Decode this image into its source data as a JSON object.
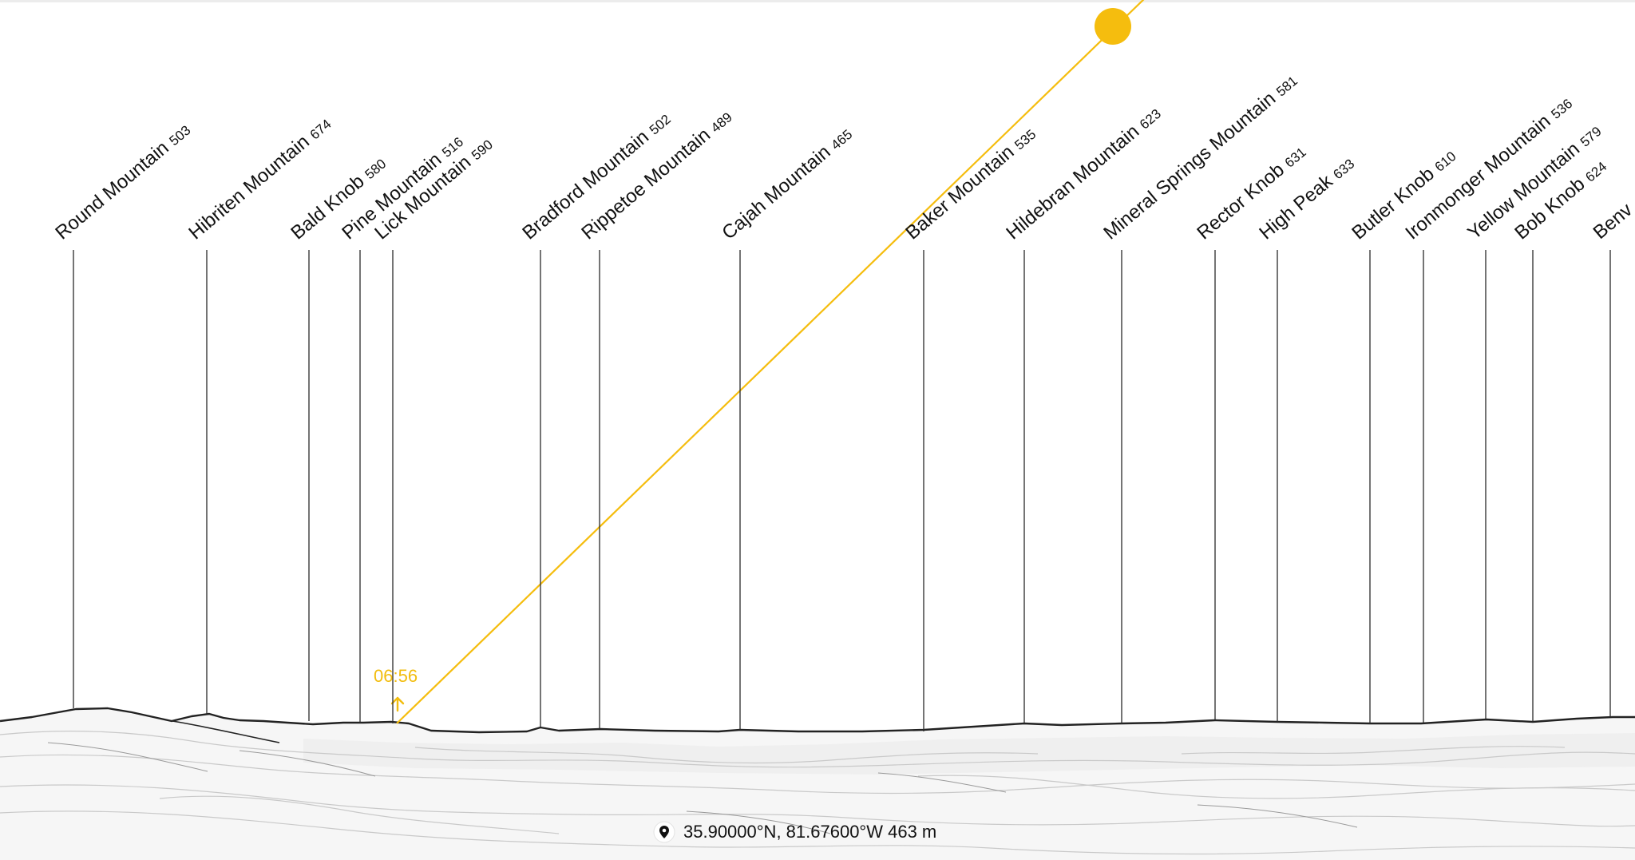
{
  "sun": {
    "time": "06:56",
    "color": "#f5bd0e"
  },
  "location": {
    "text": "35.90000°N, 81.67600°W 463 m",
    "icon": "location-pin-icon"
  },
  "peaks": [
    {
      "name": "Round Mountain",
      "elevation": "503"
    },
    {
      "name": "Hibriten Mountain",
      "elevation": "674"
    },
    {
      "name": "Bald Knob",
      "elevation": "580"
    },
    {
      "name": "Pine Mountain",
      "elevation": "516"
    },
    {
      "name": "Lick Mountain",
      "elevation": "590"
    },
    {
      "name": "Bradford Mountain",
      "elevation": "502"
    },
    {
      "name": "Rippetoe Mountain",
      "elevation": "489"
    },
    {
      "name": "Cajah Mountain",
      "elevation": "465"
    },
    {
      "name": "Baker Mountain",
      "elevation": "535"
    },
    {
      "name": "Hildebran Mountain",
      "elevation": "623"
    },
    {
      "name": "Mineral Springs Mountain",
      "elevation": "581"
    },
    {
      "name": "Rector Knob",
      "elevation": "631"
    },
    {
      "name": "High Peak",
      "elevation": "633"
    },
    {
      "name": "Butler Knob",
      "elevation": "610"
    },
    {
      "name": "Ironmonger Mountain",
      "elevation": "536"
    },
    {
      "name": "Yellow Mountain",
      "elevation": "579"
    },
    {
      "name": "Bob Knob",
      "elevation": "624"
    },
    {
      "name": "Benv",
      "elevation": ""
    }
  ]
}
